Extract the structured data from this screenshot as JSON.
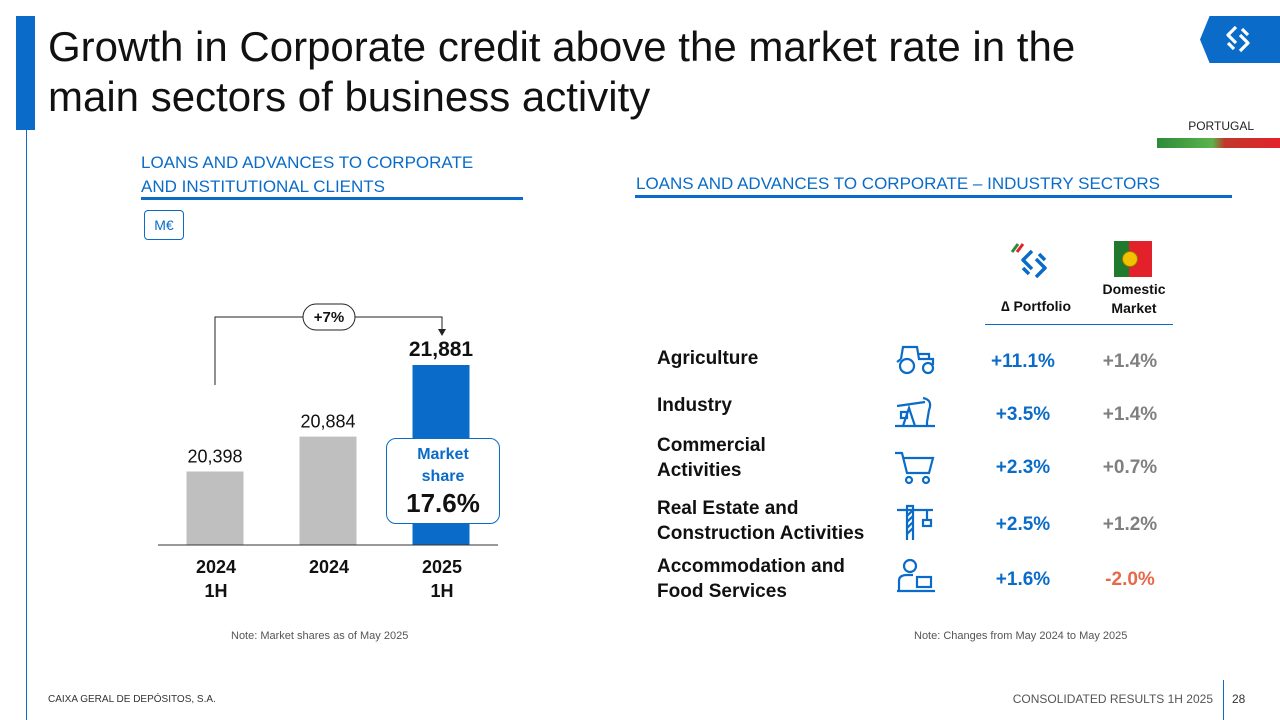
{
  "page": {
    "title": "Growth in Corporate credit above the market rate in the main sectors of business activity",
    "region": "PORTUGAL",
    "footer_left": "CAIXA GERAL DE DEPÓSITOS, S.A.",
    "footer_right": "CONSOLIDATED RESULTS 1H 2025",
    "page_number": "28"
  },
  "left_panel": {
    "heading_line1": "LOANS AND ADVANCES TO CORPORATE",
    "heading_line2": "AND INSTITUTIONAL CLIENTS",
    "unit": "M€",
    "growth_label": "+7%",
    "market_share_label_line1": "Market",
    "market_share_label_line2": "share",
    "market_share_value": "17.6%",
    "note": "Note: Market shares as of May 2025"
  },
  "right_panel": {
    "heading": "LOANS AND ADVANCES TO CORPORATE – INDUSTRY SECTORS",
    "col_portfolio": "Portfolio",
    "col_portfolio_symbol": "∆",
    "col_market_line1": "Domestic",
    "col_market_line2": "Market",
    "note": "Note: Changes from May 2024 to May 2025",
    "rows": [
      {
        "line1": "Agriculture",
        "line2": "",
        "icon": "tractor-icon",
        "portfolio": "+11.1%",
        "market": "+1.4%"
      },
      {
        "line1": "Industry",
        "line2": "",
        "icon": "pumpjack-icon",
        "portfolio": "+3.5%",
        "market": "+1.4%"
      },
      {
        "line1": "Commercial",
        "line2": "Activities",
        "icon": "shopping-cart-icon",
        "portfolio": "+2.3%",
        "market": "+0.7%"
      },
      {
        "line1": "Real Estate and",
        "line2": "Construction Activities",
        "icon": "crane-icon",
        "portfolio": "+2.5%",
        "market": "+1.2%"
      },
      {
        "line1": "Accommodation and",
        "line2": "Food Services",
        "icon": "worker-desk-icon",
        "portfolio": "+1.6%",
        "market": "-2.0%"
      }
    ]
  },
  "colors": {
    "accent": "#0a6cc8",
    "bar_gray": "#bfbfbf",
    "bar_highlight": "#0a6cc8",
    "negative": "#e8684a",
    "market_text": "#7f7f7f"
  },
  "chart_data": {
    "type": "bar",
    "categories": [
      [
        "2024",
        "1H"
      ],
      [
        "2024",
        ""
      ],
      [
        "2025",
        "1H"
      ]
    ],
    "values": [
      20398,
      20884,
      21881
    ],
    "value_labels": [
      "20,398",
      "20,884",
      "21,881"
    ],
    "highlight_index": 2,
    "ylim": [
      0,
      24000
    ],
    "title": "",
    "xlabel": "",
    "ylabel": ""
  }
}
